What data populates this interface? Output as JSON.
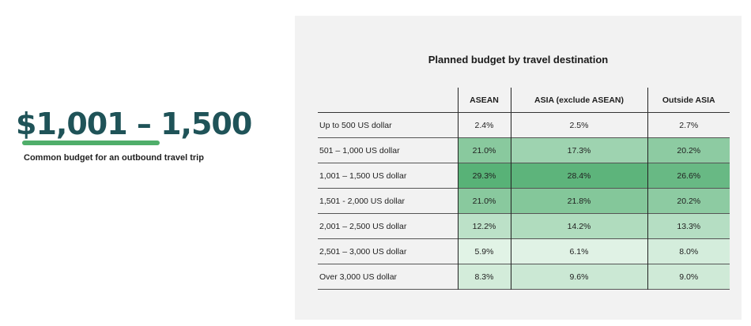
{
  "hero": {
    "value": "$1,001 – 1,500",
    "caption": "Common budget for an outbound travel trip"
  },
  "chart_data": {
    "type": "table",
    "title": "Planned budget by travel destination",
    "columns": [
      "ASEAN",
      "ASIA (exclude ASEAN)",
      "Outside ASIA"
    ],
    "rows": [
      {
        "label": "Up to 500 US dollar",
        "values": [
          2.4,
          2.5,
          2.7
        ]
      },
      {
        "label": "501 – 1,000 US dollar",
        "values": [
          21.0,
          17.3,
          20.2
        ]
      },
      {
        "label": "1,001 – 1,500 US dollar",
        "values": [
          29.3,
          28.4,
          26.6
        ]
      },
      {
        "label": "1,501 -  2,000 US dollar",
        "values": [
          21.0,
          21.8,
          20.2
        ]
      },
      {
        "label": "2,001 – 2,500 US dollar",
        "values": [
          12.2,
          14.2,
          13.3
        ]
      },
      {
        "label": "2,501 – 3,000 US dollar",
        "values": [
          5.9,
          6.1,
          8.0
        ]
      },
      {
        "label": "Over 3,000 US dollar",
        "values": [
          8.3,
          9.6,
          9.0
        ]
      }
    ],
    "display": [
      [
        "2.4%",
        "2.5%",
        "2.7%"
      ],
      [
        "21.0%",
        "17.3%",
        "20.2%"
      ],
      [
        "29.3%",
        "28.4%",
        "26.6%"
      ],
      [
        "21.0%",
        "21.8%",
        "20.2%"
      ],
      [
        "12.2%",
        "14.2%",
        "13.3%"
      ],
      [
        "5.9%",
        "6.1%",
        "8.0%"
      ],
      [
        "8.3%",
        "9.6%",
        "9.0%"
      ]
    ],
    "heat_colors": {
      "low": "#e6f5ea",
      "high": "#58b277"
    }
  }
}
